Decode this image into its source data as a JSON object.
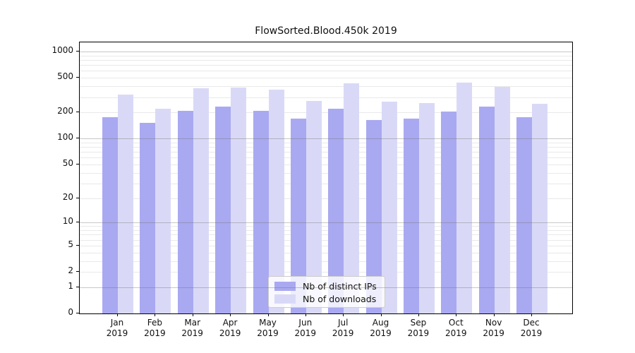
{
  "title": "FlowSorted.Blood.450k 2019",
  "legend": {
    "items": [
      {
        "label": "Nb of distinct IPs",
        "color": "#a9a9f1"
      },
      {
        "label": "Nb of downloads",
        "color": "#d9d9f7"
      }
    ]
  },
  "chart_data": {
    "type": "bar",
    "title": "FlowSorted.Blood.450k 2019",
    "months": [
      "Jan",
      "Feb",
      "Mar",
      "Apr",
      "May",
      "Jun",
      "Jul",
      "Aug",
      "Sep",
      "Oct",
      "Nov",
      "Dec"
    ],
    "year_label": "2019",
    "series": [
      {
        "name": "Nb of distinct IPs",
        "color": "#a9a9f1",
        "values": [
          177,
          151,
          210,
          233,
          210,
          169,
          219,
          164,
          171,
          206,
          233,
          176
        ]
      },
      {
        "name": "Nb of downloads",
        "color": "#d9d9f7",
        "values": [
          319,
          220,
          380,
          385,
          365,
          272,
          430,
          266,
          258,
          443,
          394,
          251
        ]
      }
    ],
    "yscale": "log1p",
    "yticks": [
      0,
      1,
      2,
      5,
      10,
      20,
      50,
      100,
      200,
      500,
      1000
    ],
    "yticks_minor": [
      3,
      4,
      6,
      7,
      8,
      9,
      20,
      30,
      40,
      60,
      70,
      80,
      90,
      200,
      300,
      400,
      600,
      700,
      800,
      900,
      2,
      5,
      50,
      500
    ],
    "ymajor_lines": [
      1,
      10,
      100,
      1000
    ],
    "ylim": [
      0,
      1275
    ],
    "grid": true,
    "legend_position": "lower center",
    "bar_colors": {
      "distinct_ips": "#a9a9f1",
      "downloads": "#d9d9f7"
    }
  }
}
